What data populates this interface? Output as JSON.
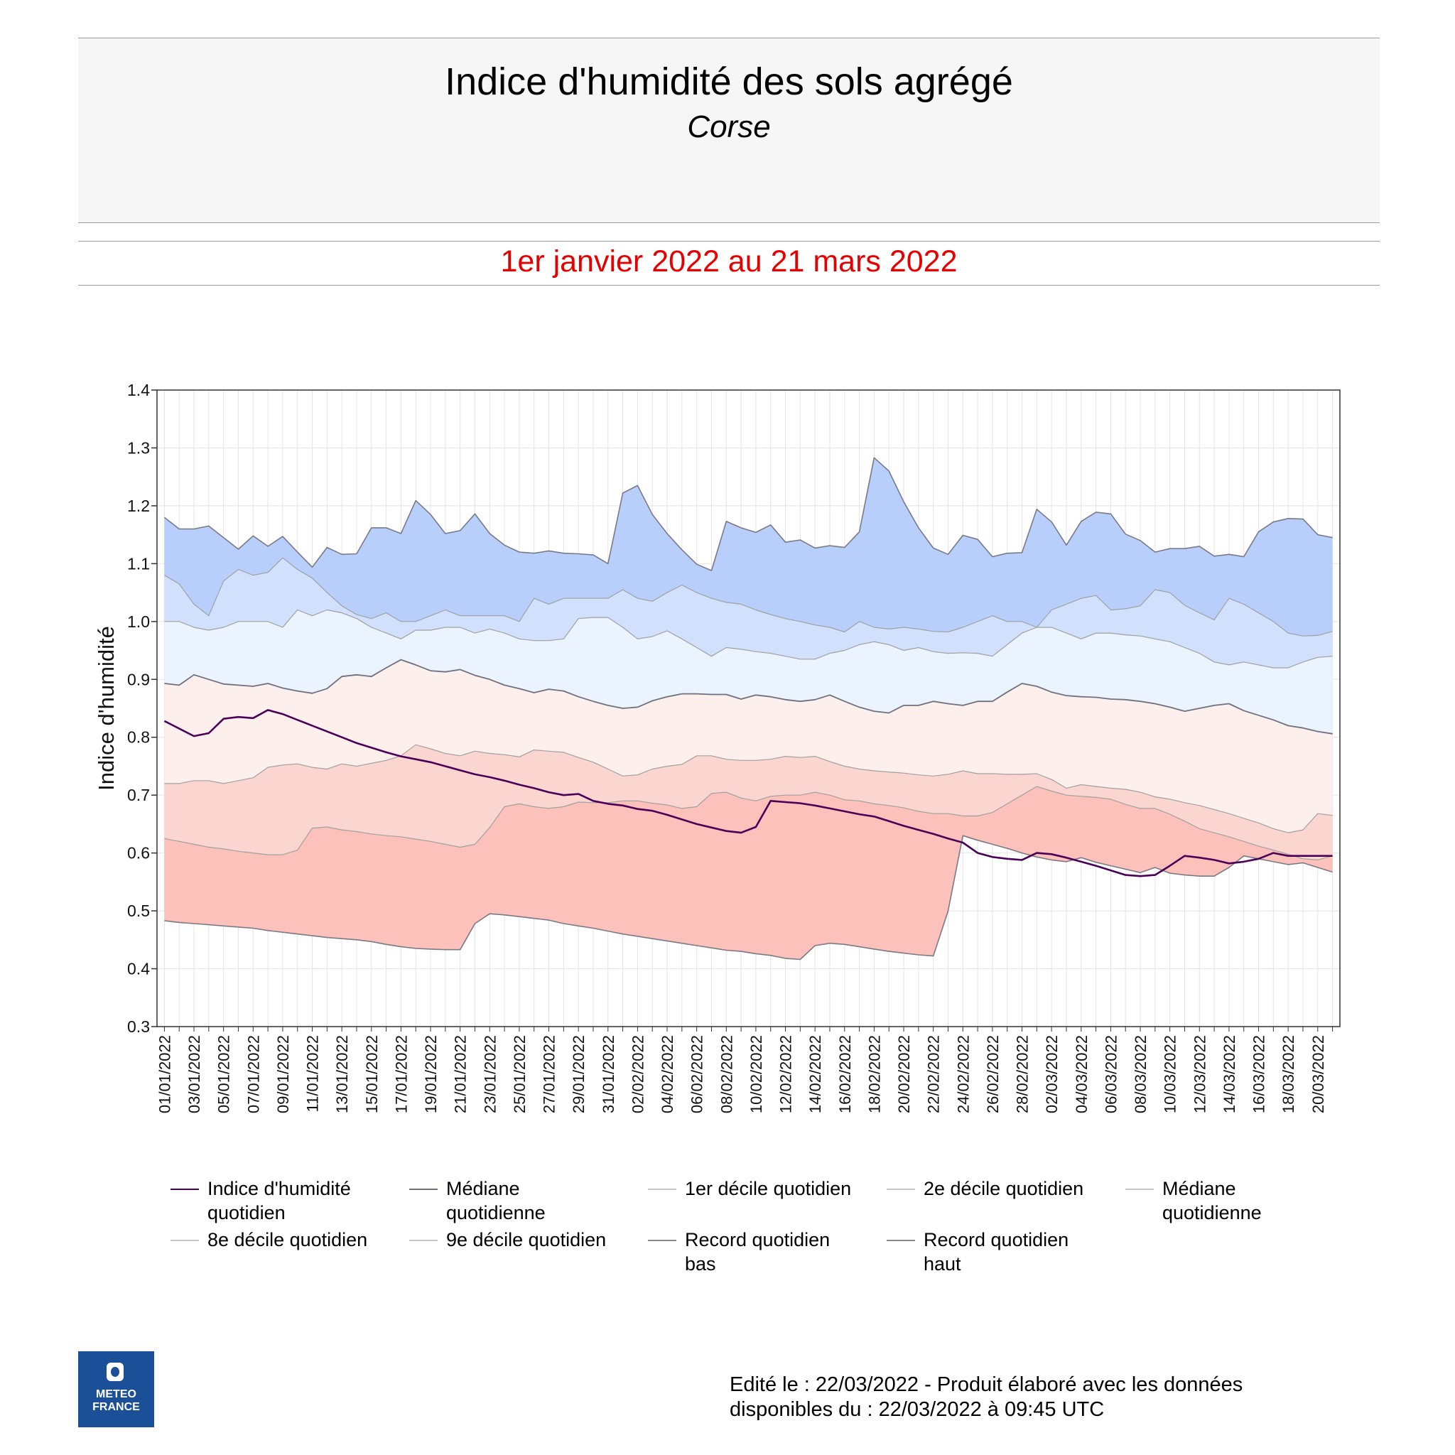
{
  "header": {
    "title": "Indice d'humidité des sols agrégé",
    "subtitle": "Corse",
    "period": "1er janvier 2022 au 21 mars 2022"
  },
  "colors": {
    "record_band": "#b8cffc",
    "d9_band": "#d0e0fd",
    "d8_band": "#eaf3fe",
    "d2_band": "#fdefec",
    "d1_band": "#fbd6d1",
    "low_band": "#fcc1ba",
    "current_line": "#4b0058",
    "median_line": "#6f6f7f",
    "boundary": "#a0a0a0"
  },
  "legend": [
    {
      "label": "Indice d'humidité quotidien",
      "color": "#4b0058"
    },
    {
      "label": "Médiane quotidienne",
      "color": "#6f6f7f"
    },
    {
      "label": "1er décile quotidien",
      "color": "#c8c8c8"
    },
    {
      "label": "2e décile quotidien",
      "color": "#c8c8c8"
    },
    {
      "label": "Médiane quotidienne",
      "color": "#c8c8c8"
    },
    {
      "label": "8e décile quotidien",
      "color": "#c8c8c8"
    },
    {
      "label": "9e décile quotidien",
      "color": "#c8c8c8"
    },
    {
      "label": "Record quotidien bas",
      "color": "#8a8a8a"
    },
    {
      "label": "Record quotidien haut",
      "color": "#8a8a8a"
    }
  ],
  "footer": {
    "line1": "Edité le : 22/03/2022 - Produit élaboré avec les données",
    "line2": "disponibles du : 22/03/2022 à 09:45 UTC"
  },
  "logo": {
    "line1": "METEO",
    "line2": "FRANCE"
  },
  "chart_data": {
    "type": "area",
    "ylabel": "Indice d'humidité",
    "xlabel": "",
    "ylim": [
      0.3,
      1.4
    ],
    "yticks": [
      "0.3",
      "0.4",
      "0.5",
      "0.6",
      "0.7",
      "0.8",
      "0.9",
      "1.0",
      "1.1",
      "1.2",
      "1.3",
      "1.4"
    ],
    "grid": true,
    "x": [
      "01/01/2022",
      "02/01/2022",
      "03/01/2022",
      "04/01/2022",
      "05/01/2022",
      "06/01/2022",
      "07/01/2022",
      "08/01/2022",
      "09/01/2022",
      "10/01/2022",
      "11/01/2022",
      "12/01/2022",
      "13/01/2022",
      "14/01/2022",
      "15/01/2022",
      "16/01/2022",
      "17/01/2022",
      "18/01/2022",
      "19/01/2022",
      "20/01/2022",
      "21/01/2022",
      "22/01/2022",
      "23/01/2022",
      "24/01/2022",
      "25/01/2022",
      "26/01/2022",
      "27/01/2022",
      "28/01/2022",
      "29/01/2022",
      "30/01/2022",
      "31/01/2022",
      "01/02/2022",
      "02/02/2022",
      "03/02/2022",
      "04/02/2022",
      "05/02/2022",
      "06/02/2022",
      "07/02/2022",
      "08/02/2022",
      "09/02/2022",
      "10/02/2022",
      "11/02/2022",
      "12/02/2022",
      "13/02/2022",
      "14/02/2022",
      "15/02/2022",
      "16/02/2022",
      "17/02/2022",
      "18/02/2022",
      "19/02/2022",
      "20/02/2022",
      "21/02/2022",
      "22/02/2022",
      "23/02/2022",
      "24/02/2022",
      "25/02/2022",
      "26/02/2022",
      "27/02/2022",
      "28/02/2022",
      "01/03/2022",
      "02/03/2022",
      "03/03/2022",
      "04/03/2022",
      "05/03/2022",
      "06/03/2022",
      "07/03/2022",
      "08/03/2022",
      "09/03/2022",
      "10/03/2022",
      "11/03/2022",
      "12/03/2022",
      "13/03/2022",
      "14/03/2022",
      "15/03/2022",
      "16/03/2022",
      "17/03/2022",
      "18/03/2022",
      "19/03/2022",
      "20/03/2022",
      "21/03/2022"
    ],
    "x_tick_labels": [
      "01/01/2022",
      "03/01/2022",
      "05/01/2022",
      "07/01/2022",
      "09/01/2022",
      "11/01/2022",
      "13/01/2022",
      "15/01/2022",
      "17/01/2022",
      "19/01/2022",
      "21/01/2022",
      "23/01/2022",
      "25/01/2022",
      "27/01/2022",
      "29/01/2022",
      "31/01/2022",
      "02/02/2022",
      "04/02/2022",
      "06/02/2022",
      "08/02/2022",
      "10/02/2022",
      "12/02/2022",
      "14/02/2022",
      "16/02/2022",
      "18/02/2022",
      "20/02/2022",
      "22/02/2022",
      "24/02/2022",
      "26/02/2022",
      "28/02/2022",
      "02/03/2022",
      "04/03/2022",
      "06/03/2022",
      "08/03/2022",
      "10/03/2022",
      "12/03/2022",
      "14/03/2022",
      "16/03/2022",
      "18/03/2022",
      "20/03/2022"
    ],
    "series": [
      {
        "name": "Record quotidien haut",
        "values": [
          1.18,
          1.16,
          1.16,
          1.165,
          1.145,
          1.125,
          1.148,
          1.13,
          1.147,
          1.12,
          1.094,
          1.128,
          1.116,
          1.117,
          1.162,
          1.162,
          1.152,
          1.209,
          1.185,
          1.152,
          1.157,
          1.186,
          1.152,
          1.132,
          1.12,
          1.118,
          1.122,
          1.118,
          1.117,
          1.115,
          1.1,
          1.222,
          1.235,
          1.185,
          1.152,
          1.124,
          1.099,
          1.088,
          1.173,
          1.162,
          1.154,
          1.167,
          1.137,
          1.141,
          1.127,
          1.131,
          1.128,
          1.155,
          1.283,
          1.26,
          1.207,
          1.162,
          1.127,
          1.116,
          1.149,
          1.142,
          1.112,
          1.118,
          1.119,
          1.194,
          1.172,
          1.132,
          1.173,
          1.189,
          1.186,
          1.151,
          1.14,
          1.12,
          1.126,
          1.126,
          1.13,
          1.113,
          1.116,
          1.112,
          1.155,
          1.172,
          1.178,
          1.177,
          1.15,
          1.145
        ]
      },
      {
        "name": "9e décile quotidien",
        "values": [
          1.08,
          1.065,
          1.03,
          1.01,
          1.07,
          1.09,
          1.08,
          1.085,
          1.11,
          1.09,
          1.075,
          1.05,
          1.027,
          1.012,
          1.005,
          1.015,
          1.0,
          1.0,
          1.01,
          1.02,
          1.01,
          1.01,
          1.01,
          1.01,
          1.0,
          1.04,
          1.03,
          1.04,
          1.04,
          1.04,
          1.04,
          1.055,
          1.04,
          1.035,
          1.05,
          1.063,
          1.05,
          1.04,
          1.033,
          1.03,
          1.02,
          1.012,
          1.005,
          1.0,
          0.994,
          0.99,
          0.982,
          1.0,
          0.99,
          0.987,
          0.99,
          0.987,
          0.983,
          0.982,
          0.99,
          1.0,
          1.01,
          1.0,
          1.0,
          0.99,
          1.02,
          1.03,
          1.04,
          1.045,
          1.02,
          1.022,
          1.027,
          1.055,
          1.05,
          1.028,
          1.015,
          1.003,
          1.04,
          1.03,
          1.015,
          1.0,
          0.98,
          0.975,
          0.976,
          0.983
        ]
      },
      {
        "name": "8e décile quotidien",
        "values": [
          1.0,
          1.0,
          0.99,
          0.985,
          0.99,
          1.0,
          1.0,
          1.0,
          0.99,
          1.02,
          1.01,
          1.02,
          1.015,
          1.005,
          0.99,
          0.98,
          0.97,
          0.985,
          0.985,
          0.99,
          0.99,
          0.98,
          0.987,
          0.98,
          0.97,
          0.967,
          0.967,
          0.97,
          1.005,
          1.007,
          1.007,
          0.99,
          0.97,
          0.974,
          0.984,
          0.97,
          0.955,
          0.94,
          0.955,
          0.952,
          0.948,
          0.945,
          0.94,
          0.935,
          0.935,
          0.945,
          0.95,
          0.96,
          0.965,
          0.96,
          0.95,
          0.955,
          0.948,
          0.945,
          0.946,
          0.945,
          0.94,
          0.96,
          0.98,
          0.99,
          0.99,
          0.98,
          0.97,
          0.98,
          0.98,
          0.977,
          0.975,
          0.97,
          0.965,
          0.955,
          0.945,
          0.93,
          0.925,
          0.93,
          0.925,
          0.92,
          0.92,
          0.93,
          0.938,
          0.94
        ]
      },
      {
        "name": "Médiane quotidienne",
        "values": [
          0.893,
          0.89,
          0.908,
          0.9,
          0.892,
          0.89,
          0.888,
          0.893,
          0.885,
          0.88,
          0.876,
          0.884,
          0.905,
          0.908,
          0.905,
          0.92,
          0.934,
          0.925,
          0.915,
          0.913,
          0.917,
          0.907,
          0.9,
          0.89,
          0.884,
          0.877,
          0.883,
          0.88,
          0.87,
          0.862,
          0.855,
          0.85,
          0.852,
          0.863,
          0.87,
          0.875,
          0.875,
          0.874,
          0.874,
          0.866,
          0.873,
          0.87,
          0.865,
          0.862,
          0.865,
          0.873,
          0.862,
          0.852,
          0.845,
          0.842,
          0.855,
          0.855,
          0.862,
          0.858,
          0.855,
          0.862,
          0.862,
          0.878,
          0.893,
          0.888,
          0.878,
          0.872,
          0.87,
          0.869,
          0.866,
          0.865,
          0.862,
          0.858,
          0.852,
          0.845,
          0.85,
          0.855,
          0.858,
          0.846,
          0.838,
          0.83,
          0.82,
          0.816,
          0.81,
          0.806
        ]
      },
      {
        "name": "2e décile quotidien",
        "values": [
          0.72,
          0.72,
          0.725,
          0.725,
          0.72,
          0.725,
          0.73,
          0.748,
          0.752,
          0.754,
          0.748,
          0.745,
          0.754,
          0.75,
          0.755,
          0.76,
          0.768,
          0.787,
          0.78,
          0.772,
          0.768,
          0.776,
          0.772,
          0.77,
          0.766,
          0.778,
          0.776,
          0.774,
          0.765,
          0.757,
          0.745,
          0.733,
          0.735,
          0.745,
          0.75,
          0.753,
          0.768,
          0.768,
          0.762,
          0.76,
          0.76,
          0.762,
          0.767,
          0.765,
          0.767,
          0.758,
          0.75,
          0.745,
          0.742,
          0.74,
          0.738,
          0.735,
          0.733,
          0.736,
          0.742,
          0.737,
          0.737,
          0.736,
          0.736,
          0.737,
          0.727,
          0.712,
          0.718,
          0.715,
          0.712,
          0.71,
          0.705,
          0.697,
          0.693,
          0.687,
          0.682,
          0.675,
          0.668,
          0.66,
          0.652,
          0.642,
          0.635,
          0.64,
          0.668,
          0.665
        ]
      },
      {
        "name": "1er décile quotidien",
        "values": [
          0.625,
          0.62,
          0.615,
          0.61,
          0.607,
          0.603,
          0.6,
          0.597,
          0.597,
          0.605,
          0.643,
          0.645,
          0.64,
          0.637,
          0.633,
          0.63,
          0.628,
          0.624,
          0.62,
          0.615,
          0.61,
          0.615,
          0.644,
          0.68,
          0.685,
          0.68,
          0.677,
          0.68,
          0.688,
          0.687,
          0.687,
          0.69,
          0.69,
          0.686,
          0.683,
          0.677,
          0.68,
          0.703,
          0.705,
          0.695,
          0.69,
          0.698,
          0.7,
          0.7,
          0.705,
          0.7,
          0.692,
          0.69,
          0.685,
          0.682,
          0.678,
          0.672,
          0.668,
          0.668,
          0.664,
          0.664,
          0.67,
          0.685,
          0.7,
          0.715,
          0.707,
          0.7,
          0.698,
          0.696,
          0.693,
          0.684,
          0.677,
          0.677,
          0.667,
          0.655,
          0.642,
          0.635,
          0.628,
          0.62,
          0.612,
          0.605,
          0.598,
          0.59,
          0.588,
          0.595
        ]
      },
      {
        "name": "Record quotidien bas",
        "values": [
          0.483,
          0.48,
          0.478,
          0.476,
          0.474,
          0.472,
          0.47,
          0.466,
          0.463,
          0.46,
          0.457,
          0.454,
          0.452,
          0.45,
          0.447,
          0.442,
          0.438,
          0.435,
          0.434,
          0.433,
          0.433,
          0.478,
          0.495,
          0.493,
          0.49,
          0.487,
          0.484,
          0.478,
          0.474,
          0.47,
          0.465,
          0.46,
          0.456,
          0.452,
          0.448,
          0.444,
          0.44,
          0.436,
          0.432,
          0.43,
          0.426,
          0.423,
          0.418,
          0.416,
          0.44,
          0.444,
          0.442,
          0.438,
          0.434,
          0.43,
          0.427,
          0.424,
          0.422,
          0.5,
          0.63,
          0.622,
          0.615,
          0.608,
          0.6,
          0.593,
          0.588,
          0.585,
          0.592,
          0.584,
          0.578,
          0.572,
          0.566,
          0.575,
          0.565,
          0.562,
          0.56,
          0.56,
          0.575,
          0.595,
          0.59,
          0.585,
          0.58,
          0.583,
          0.575,
          0.567
        ]
      },
      {
        "name": "Indice d'humidité quotidien",
        "values": [
          0.828,
          0.815,
          0.802,
          0.807,
          0.832,
          0.835,
          0.833,
          0.847,
          0.84,
          0.83,
          0.82,
          0.81,
          0.8,
          0.79,
          0.782,
          0.774,
          0.767,
          0.762,
          0.757,
          0.75,
          0.743,
          0.736,
          0.731,
          0.725,
          0.718,
          0.712,
          0.705,
          0.7,
          0.702,
          0.69,
          0.685,
          0.682,
          0.676,
          0.673,
          0.666,
          0.658,
          0.65,
          0.644,
          0.638,
          0.635,
          0.645,
          0.69,
          0.688,
          0.686,
          0.682,
          0.677,
          0.672,
          0.667,
          0.663,
          0.655,
          0.647,
          0.64,
          0.633,
          0.625,
          0.618,
          0.6,
          0.593,
          0.59,
          0.588,
          0.6,
          0.598,
          0.592,
          0.585,
          0.578,
          0.57,
          0.562,
          0.56,
          0.562,
          0.578,
          0.595,
          0.592,
          0.588,
          0.582,
          0.585,
          0.59,
          0.6,
          0.595,
          0.595,
          0.595,
          0.595
        ]
      }
    ]
  }
}
